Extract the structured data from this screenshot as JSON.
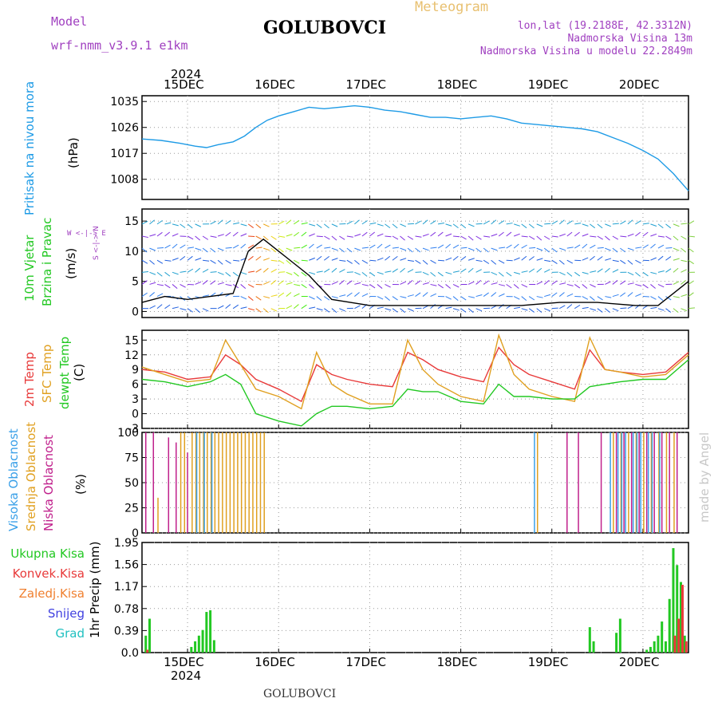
{
  "header": {
    "title": "GOLUBOVCI",
    "subtitle": "Meteogram",
    "model_label": "Model",
    "model_name": "wrf-nmm_v3.9.1 e1km",
    "lonlat": "lon,lat (19.2188E, 42.3312N)",
    "elevation": "Nadmorska Visina 13m",
    "model_elevation": "Nadmorska Visina u modelu 22.2849m",
    "footer_title": "GOLUBOVCI",
    "watermark": "made by Angel"
  },
  "colors": {
    "pressure": "#1e9be6",
    "wind_speed": "#000000",
    "gust": "#e83030",
    "temp2m": "#e83a3a",
    "sfc_temp": "#e0a020",
    "dewpoint": "#22c822",
    "cloud_high": "#3aa0e8",
    "cloud_mid": "#e0a020",
    "cloud_low": "#c0208c",
    "precip_total": "#22c822",
    "precip_conv": "#e83a3a",
    "precip_frozen": "#f08030",
    "snow": "#4040e0",
    "hail": "#20c0c0",
    "title_purple": "#a040c0",
    "title_gold": "#e8c070"
  },
  "time_axis": {
    "year": "2024",
    "day_labels": [
      "15DEC",
      "16DEC",
      "17DEC",
      "18DEC",
      "19DEC",
      "20DEC"
    ],
    "start_hour": 0,
    "end_hour": 144
  },
  "panels": {
    "pressure": {
      "label": "Pritisak na nivou mora",
      "unit": "(hPa)"
    },
    "wind": {
      "label1": "10m Vjetar",
      "label2": "Brzina i Pravac",
      "unit": "(m/s)",
      "compass": "W <-|-> E",
      "compass_v": "S <-|-> N"
    },
    "temp": {
      "label1": "2m Temp",
      "label2": "SFC Temp",
      "label3": "dewpt Temp",
      "unit": "(C)"
    },
    "cloud": {
      "label1": "Visoka Oblacnost",
      "label2": "Srednja Oblacnost",
      "label3": "Niska Oblacnost",
      "unit": "(%)"
    },
    "precip": {
      "unit": "1hr Precip (mm)",
      "legend": [
        "Ukupna Kisa",
        "Konvek.Kisa",
        "Zaledj.Kisa",
        "Snijeg",
        "Grad"
      ]
    }
  },
  "chart_data": [
    {
      "type": "line",
      "title": "Pritisak na nivou mora",
      "ylabel": "(hPa)",
      "ylim": [
        1001,
        1037
      ],
      "yticks": [
        1008,
        1017,
        1026,
        1035
      ],
      "x_units": "hours from 14DEC 12:00",
      "x": [
        0,
        5,
        10,
        14,
        17,
        20,
        24,
        27,
        30,
        33,
        36,
        40,
        44,
        48,
        52,
        56,
        60,
        64,
        68,
        72,
        76,
        80,
        84,
        88,
        92,
        96,
        100,
        104,
        108,
        112,
        116,
        120,
        124,
        128,
        132,
        136,
        140,
        144
      ],
      "series": [
        {
          "values": [
            1022,
            1021.5,
            1020.5,
            1019.5,
            1019,
            1020,
            1021,
            1023,
            1026,
            1028.5,
            1030,
            1031.5,
            1033,
            1032.5,
            1033,
            1033.5,
            1033,
            1032,
            1031.5,
            1030.5,
            1029.5,
            1029.5,
            1029,
            1029.5,
            1030,
            1029,
            1027.5,
            1027,
            1026.5,
            1026,
            1025.5,
            1024.5,
            1022.5,
            1020.5,
            1018,
            1015,
            1010,
            1004
          ]
        }
      ]
    },
    {
      "type": "line",
      "title": "10m Vjetar Brzina i Pravac",
      "ylabel": "(m/s)",
      "ylim": [
        -1,
        17
      ],
      "yticks": [
        0,
        5,
        10,
        15
      ],
      "x_units": "hours from 14DEC 12:00",
      "x": [
        0,
        6,
        12,
        18,
        24,
        28,
        32,
        36,
        40,
        44,
        50,
        60,
        70,
        80,
        90,
        100,
        110,
        120,
        130,
        136,
        140,
        144
      ],
      "series": [
        {
          "values": [
            1.5,
            2.5,
            2,
            2.5,
            3,
            10,
            12,
            10,
            8,
            6,
            2,
            1,
            1,
            1,
            1,
            1,
            1.5,
            1.5,
            1,
            1,
            3,
            5
          ]
        }
      ]
    },
    {
      "type": "line",
      "title": "Temperature",
      "ylabel": "(C)",
      "ylim": [
        -3,
        17
      ],
      "yticks": [
        -3,
        0,
        3,
        6,
        9,
        12,
        15
      ],
      "x_units": "hours from 14DEC 12:00",
      "x": [
        0,
        6,
        12,
        18,
        22,
        26,
        30,
        36,
        42,
        46,
        50,
        54,
        60,
        66,
        70,
        74,
        78,
        84,
        90,
        94,
        98,
        102,
        108,
        114,
        118,
        122,
        126,
        132,
        138,
        144
      ],
      "series": [
        {
          "name": "2m Temp",
          "values": [
            9,
            8.5,
            7,
            7.5,
            12,
            10,
            7,
            5,
            2.5,
            10,
            8,
            7,
            6,
            5.5,
            12.5,
            11,
            9,
            7.5,
            6.5,
            13.5,
            10,
            8,
            6.5,
            5,
            13,
            9,
            8.5,
            8,
            8.5,
            12.5
          ]
        },
        {
          "name": "SFC Temp",
          "values": [
            9.5,
            8,
            6.5,
            7,
            15,
            10,
            5,
            3.5,
            1,
            12.5,
            6,
            4,
            2,
            2,
            15,
            9,
            6,
            3.5,
            2.5,
            16,
            8,
            5,
            3.5,
            2.5,
            15.5,
            9,
            8.5,
            7.5,
            8,
            12
          ]
        },
        {
          "name": "dewpt Temp",
          "values": [
            7,
            6.5,
            5.5,
            6.5,
            8,
            6,
            0,
            -1.5,
            -2.5,
            0,
            1.5,
            1.5,
            1,
            1.5,
            5,
            4.5,
            4.5,
            2.5,
            2,
            6,
            3.5,
            3.5,
            3,
            3,
            5.5,
            6,
            6.5,
            7,
            7,
            11
          ]
        }
      ]
    },
    {
      "type": "bar",
      "title": "Oblacnost",
      "ylabel": "(%)",
      "ylim": [
        0,
        100
      ],
      "yticks": [
        0,
        25,
        50,
        75,
        100
      ],
      "x_units": "hours from 14DEC 12:00",
      "series": [
        {
          "name": "Niska Oblacnost",
          "x": [
            1,
            3,
            7,
            9,
            12,
            112,
            115,
            121,
            125,
            127,
            129,
            131,
            133,
            135,
            137,
            139,
            141
          ],
          "values": [
            100,
            100,
            95,
            90,
            80,
            100,
            100,
            100,
            100,
            100,
            100,
            100,
            100,
            100,
            100,
            100,
            100
          ]
        },
        {
          "name": "Srednja Oblacnost",
          "x": [
            4,
            10,
            11,
            13,
            14,
            15,
            16,
            17,
            18,
            19,
            20,
            21,
            22,
            23,
            24,
            25,
            26,
            27,
            28,
            29,
            30,
            31,
            32,
            104,
            124,
            126,
            128,
            130,
            132,
            134,
            136,
            138,
            140
          ],
          "values": [
            35,
            100,
            100,
            100,
            100,
            100,
            100,
            100,
            100,
            100,
            100,
            100,
            100,
            100,
            100,
            100,
            100,
            100,
            100,
            100,
            100,
            100,
            100,
            100,
            100,
            100,
            100,
            100,
            100,
            100,
            100,
            100,
            100
          ]
        },
        {
          "name": "Visoka Oblacnost",
          "x": [
            14,
            16,
            18,
            103,
            123,
            125,
            126,
            127,
            129,
            130,
            131,
            133,
            134,
            136
          ],
          "values": [
            100,
            100,
            100,
            100,
            100,
            100,
            100,
            100,
            100,
            100,
            100,
            100,
            100,
            100
          ]
        }
      ]
    },
    {
      "type": "bar",
      "title": "1hr Precip",
      "ylabel": "1hr Precip (mm)",
      "ylim": [
        0,
        1.95
      ],
      "yticks": [
        0,
        0.39,
        0.78,
        1.17,
        1.56,
        1.95
      ],
      "x_units": "hours from 14DEC 12:00",
      "series": [
        {
          "name": "Ukupna Kisa",
          "x": [
            1,
            2,
            13,
            14,
            15,
            16,
            17,
            18,
            19,
            118,
            119,
            125,
            126,
            133,
            134,
            135,
            136,
            137,
            138,
            139,
            140,
            141,
            142,
            143
          ],
          "values": [
            0.3,
            0.6,
            0.1,
            0.2,
            0.3,
            0.4,
            0.72,
            0.75,
            0.22,
            0.45,
            0.2,
            0.35,
            0.6,
            0.05,
            0.1,
            0.2,
            0.3,
            0.55,
            0.2,
            0.95,
            1.85,
            1.55,
            1.25,
            0.3
          ]
        },
        {
          "name": "Konvek.Kisa",
          "x": [
            1,
            140,
            141,
            142,
            143
          ],
          "values": [
            0.05,
            0.3,
            0.6,
            1.2,
            0.2
          ]
        }
      ]
    }
  ]
}
